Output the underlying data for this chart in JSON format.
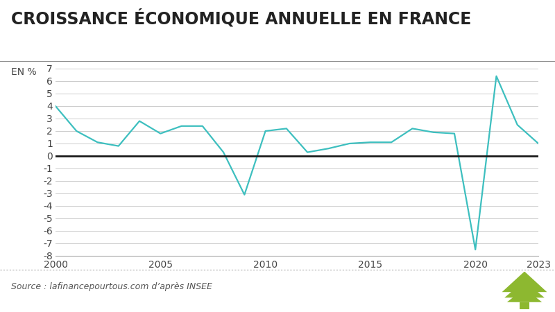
{
  "title": "CROISSANCE ÉCONOMIQUE ANNUELLE EN FRANCE",
  "ylabel": "EN %",
  "source": "Source : lafinancepourtous.com d’après INSEE",
  "years": [
    2000,
    2001,
    2002,
    2003,
    2004,
    2005,
    2006,
    2007,
    2008,
    2009,
    2010,
    2011,
    2012,
    2013,
    2014,
    2015,
    2016,
    2017,
    2018,
    2019,
    2020,
    2021,
    2022,
    2023
  ],
  "values": [
    4.0,
    2.0,
    1.1,
    0.8,
    2.8,
    1.8,
    2.4,
    2.4,
    0.3,
    -3.1,
    2.0,
    2.2,
    0.3,
    0.6,
    1.0,
    1.1,
    1.1,
    2.2,
    1.9,
    1.8,
    -7.5,
    6.4,
    2.5,
    1.0
  ],
  "line_color": "#3dbfbf",
  "zero_line_color": "#1a1a1a",
  "grid_color": "#cccccc",
  "background_color": "#ffffff",
  "ylim": [
    -8,
    7
  ],
  "yticks": [
    -8,
    -7,
    -6,
    -5,
    -4,
    -3,
    -2,
    -1,
    0,
    1,
    2,
    3,
    4,
    5,
    6,
    7
  ],
  "xticks": [
    2000,
    2005,
    2010,
    2015,
    2020,
    2023
  ],
  "title_fontsize": 17,
  "ylabel_fontsize": 10,
  "tick_fontsize": 10,
  "source_fontsize": 9,
  "line_width": 1.6,
  "tree_color": "#8db830"
}
